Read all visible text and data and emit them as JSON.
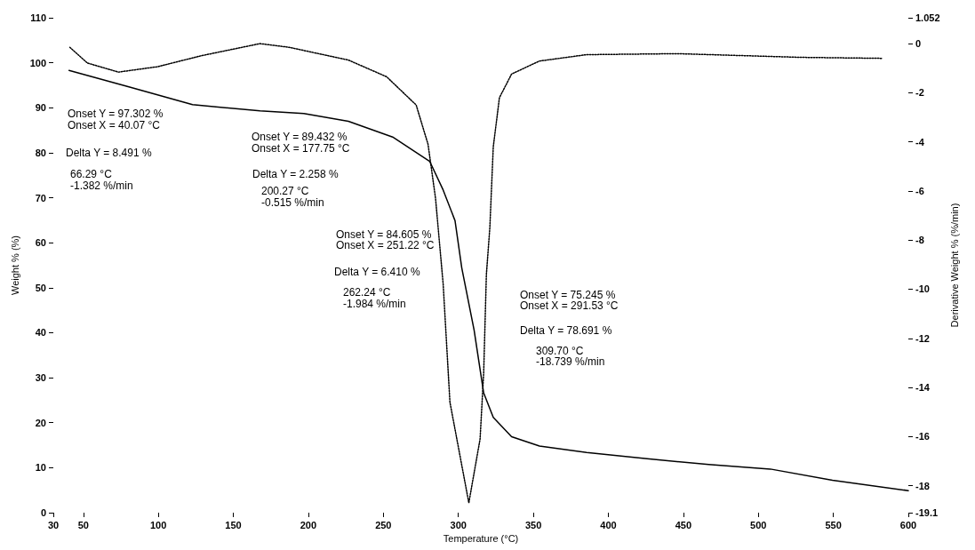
{
  "chart_data": {
    "type": "line",
    "xlabel": "Temperature (°C)",
    "ylabel": "Weight % (%)",
    "y2label": "Derivative Weight % (%/min)",
    "xlim": [
      30,
      600
    ],
    "xticks": [
      30,
      50,
      100,
      150,
      200,
      250,
      300,
      350,
      400,
      450,
      500,
      550,
      600
    ],
    "ylim": [
      0,
      110
    ],
    "yticks": [
      0,
      10,
      20,
      30,
      40,
      50,
      60,
      70,
      80,
      90,
      100,
      110
    ],
    "y2lim": [
      -19.1,
      1.052
    ],
    "y2ticks": [
      -19.1,
      -18,
      -16,
      -14,
      -12,
      -10,
      -8,
      -6,
      -4,
      -2,
      0,
      1.052
    ],
    "grid": false,
    "marker": "none",
    "series": [
      {
        "color": "#000000",
        "line_style": "solid",
        "x": [
          40.5,
          80.9,
          122.8,
          167.8,
          197,
          226.7,
          256.2,
          280.9,
          289.9,
          297.8,
          302.3,
          310.5,
          316.9,
          323.3,
          335.5,
          354.1,
          385.5,
          425.8,
          466.9,
          508,
          549.4,
          600
        ],
        "values": [
          98.3,
          94.6,
          90.7,
          89.3,
          88.7,
          87.0,
          83.5,
          78.1,
          71.7,
          64.9,
          54.4,
          40.6,
          26.6,
          21.2,
          16.9,
          14.8,
          13.4,
          12.0,
          10.7,
          9.7,
          7.2,
          4.9
        ]
      },
      {
        "color": "#000000",
        "line_style": "dotted",
        "axis": "y2",
        "x": [
          41,
          52.7,
          73.4,
          99.5,
          128.9,
          167.8,
          187.2,
          226.7,
          252.2,
          271.9,
          279.8,
          284.8,
          289.9,
          294.4,
          307,
          314.5,
          316.9,
          318.7,
          321,
          323.3,
          327.4,
          335.5,
          354,
          385.5,
          446,
          528.7,
          583
        ],
        "values": [
          -0.15,
          -0.79,
          -1.16,
          -0.94,
          -0.49,
          0,
          -0.15,
          -0.67,
          -1.35,
          -2.5,
          -4.1,
          -6.3,
          -9.8,
          -14.6,
          -18.7,
          -16.1,
          -13.4,
          -9.4,
          -7.5,
          -4.2,
          -2.2,
          -1.24,
          -0.71,
          -0.45,
          -0.41,
          -0.56,
          -0.6
        ]
      }
    ],
    "annotations": [
      "Onset Y = 97.302 %",
      "Onset X = 40.07 °C",
      "Delta Y = 8.491 %",
      "66.29 °C",
      "-1.382 %/min",
      "Onset Y = 89.432 %",
      "Onset X = 177.75 °C",
      "Delta Y = 2.258 %",
      "200.27 °C",
      "-0.515 %/min",
      "Onset Y = 84.605 %",
      "Onset X = 251.22 °C",
      "Delta Y = 6.410 %",
      "262.24 °C",
      "-1.984 %/min",
      "Onset Y = 75.245 %",
      "Onset X = 291.53 °C",
      "Delta Y = 78.691 %",
      "309.70 °C",
      "-18.739 %/min"
    ]
  }
}
